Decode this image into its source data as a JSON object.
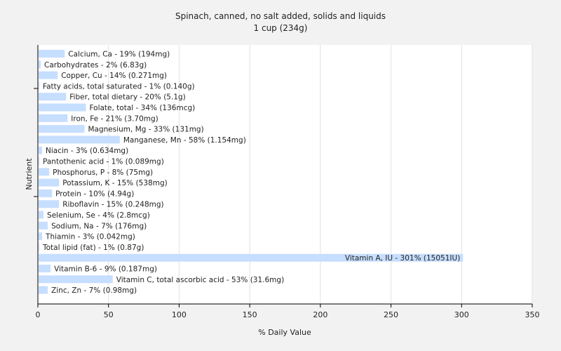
{
  "chart_data": {
    "type": "bar",
    "orientation": "horizontal",
    "title": "Spinach, canned, no salt added, solids and liquids",
    "subtitle": "1 cup (234g)",
    "xlabel": "% Daily Value",
    "ylabel": "Nutrient",
    "xlim": [
      0,
      350
    ],
    "xticks": [
      0,
      50,
      100,
      150,
      200,
      250,
      300,
      350
    ],
    "grid": true,
    "bar_color": "#c6deff",
    "plot_background": "#ffffff",
    "page_background": "#f2f2f2",
    "categories": [
      "Calcium, Ca",
      "Carbohydrates",
      "Copper, Cu",
      "Fatty acids, total saturated",
      "Fiber, total dietary",
      "Folate, total",
      "Iron, Fe",
      "Magnesium, Mg",
      "Manganese, Mn",
      "Niacin",
      "Pantothenic acid",
      "Phosphorus, P",
      "Potassium, K",
      "Protein",
      "Riboflavin",
      "Selenium, Se",
      "Sodium, Na",
      "Thiamin",
      "Total lipid (fat)",
      "Vitamin A, IU",
      "Vitamin B-6",
      "Vitamin C, total ascorbic acid",
      "Zinc, Zn"
    ],
    "values": [
      19,
      2,
      14,
      1,
      20,
      34,
      21,
      33,
      58,
      3,
      1,
      8,
      15,
      10,
      15,
      4,
      7,
      3,
      1,
      301,
      9,
      53,
      7
    ],
    "labels": [
      "Calcium, Ca - 19% (194mg)",
      "Carbohydrates - 2% (6.83g)",
      "Copper, Cu - 14% (0.271mg)",
      "Fatty acids, total saturated - 1% (0.140g)",
      "Fiber, total dietary - 20% (5.1g)",
      "Folate, total - 34% (136mcg)",
      "Iron, Fe - 21% (3.70mg)",
      "Magnesium, Mg - 33% (131mg)",
      "Manganese, Mn - 58% (1.154mg)",
      "Niacin - 3% (0.634mg)",
      "Pantothenic acid - 1% (0.089mg)",
      "Phosphorus, P - 8% (75mg)",
      "Potassium, K - 15% (538mg)",
      "Protein - 10% (4.94g)",
      "Riboflavin - 15% (0.248mg)",
      "Selenium, Se - 4% (2.8mcg)",
      "Sodium, Na - 7% (176mg)",
      "Thiamin - 3% (0.042mg)",
      "Total lipid (fat) - 1% (0.87g)",
      "Vitamin A, IU - 301% (15051IU)",
      "Vitamin B-6 - 9% (0.187mg)",
      "Vitamin C, total ascorbic acid - 53% (31.6mg)",
      "Zinc, Zn - 7% (0.98mg)"
    ]
  }
}
